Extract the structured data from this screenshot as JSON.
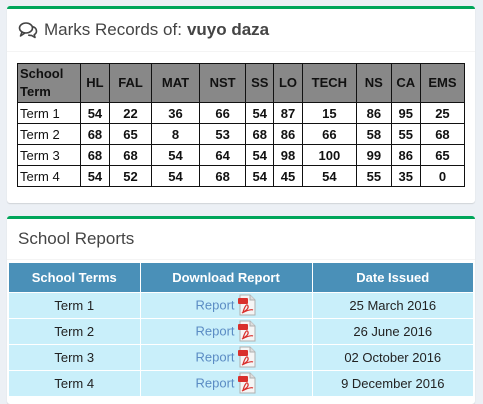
{
  "marks_panel": {
    "title_prefix": "Marks Records of:",
    "student_name": "vuyo daza",
    "icon": "comments-icon",
    "columns": [
      "School Term",
      "HL",
      "FAL",
      "MAT",
      "NST",
      "SS",
      "LO",
      "TECH",
      "NS",
      "CA",
      "EMS"
    ],
    "rows": [
      {
        "term": "Term 1",
        "marks": [
          "54",
          "22",
          "36",
          "66",
          "54",
          "87",
          "15",
          "86",
          "95",
          "25"
        ]
      },
      {
        "term": "Term 2",
        "marks": [
          "68",
          "65",
          "8",
          "53",
          "68",
          "86",
          "66",
          "58",
          "55",
          "68"
        ]
      },
      {
        "term": "Term 3",
        "marks": [
          "68",
          "68",
          "54",
          "64",
          "54",
          "98",
          "100",
          "99",
          "86",
          "65"
        ]
      },
      {
        "term": "Term 4",
        "marks": [
          "54",
          "52",
          "54",
          "68",
          "54",
          "45",
          "54",
          "55",
          "35",
          "0"
        ]
      }
    ]
  },
  "reports_panel": {
    "title": "School Reports",
    "columns": [
      "School Terms",
      "Download Report",
      "Date Issued"
    ],
    "rows": [
      {
        "term": "Term 1",
        "link": "Report",
        "icon": "pdf-icon",
        "date": "25 March 2016"
      },
      {
        "term": "Term 2",
        "link": "Report",
        "icon": "pdf-icon",
        "date": "26 June 2016"
      },
      {
        "term": "Term 3",
        "link": "Report",
        "icon": "pdf-icon",
        "date": "02 October 2016"
      },
      {
        "term": "Term 4",
        "link": "Report",
        "icon": "pdf-icon",
        "date": "9 December 2016"
      }
    ]
  },
  "colors": {
    "accent_border": "#00a65a",
    "marks_header_bg": "#888888",
    "reports_header_bg": "#4a90b8",
    "reports_row_bg": "#c9effa",
    "link": "#5b8cc4"
  }
}
